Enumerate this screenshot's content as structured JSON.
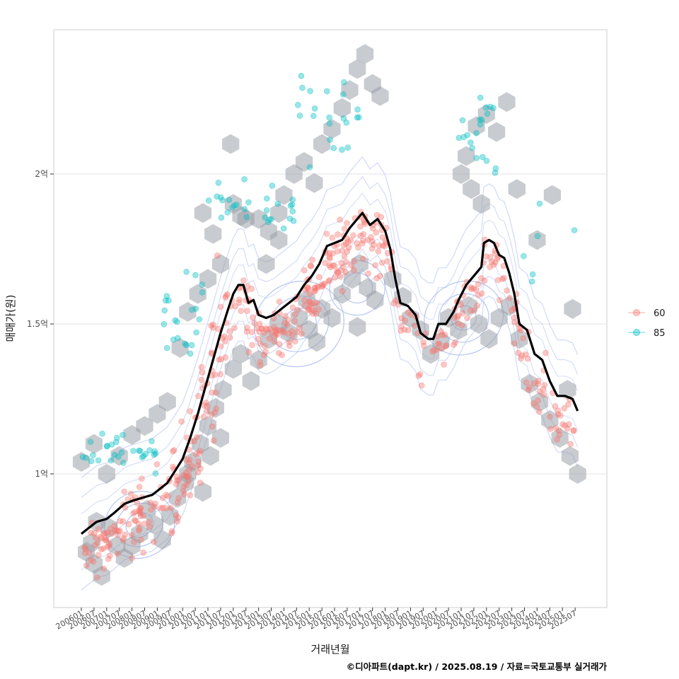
{
  "chart_data": {
    "type": "scatter",
    "xlabel": "거래년월",
    "ylabel": "매매가(원)",
    "caption": "©디아파트(dapt.kr) / 2025.08.19 / 자료=국토교통부 실거래가",
    "x_ticks": [
      "200601",
      "200607",
      "200701",
      "200707",
      "200801",
      "200807",
      "200901",
      "200907",
      "201001",
      "201007",
      "201101",
      "201107",
      "201201",
      "201207",
      "201301",
      "201307",
      "201401",
      "201407",
      "201501",
      "201507",
      "201601",
      "201607",
      "201701",
      "201707",
      "201801",
      "201807",
      "201901",
      "201907",
      "202001",
      "202007",
      "202101",
      "202107",
      "202201",
      "202207",
      "202301",
      "202307",
      "202401",
      "202407",
      "202501",
      "202507"
    ],
    "xlim": [
      2005.5,
      2026.6
    ],
    "y_ticks": [
      {
        "value": 100000000,
        "label": "1억"
      },
      {
        "value": 150000000,
        "label": "1.5억"
      },
      {
        "value": 200000000,
        "label": "2억"
      }
    ],
    "ylim": [
      55000000,
      248000000
    ],
    "grid": true,
    "legend": {
      "position": "right",
      "entries": [
        {
          "name": "60",
          "color": "#F8766D"
        },
        {
          "name": "85",
          "color": "#00BFC4"
        }
      ]
    },
    "trend_line": {
      "color": "#000000",
      "points": [
        [
          2006.0,
          80
        ],
        [
          2006.3,
          82
        ],
        [
          2006.6,
          84
        ],
        [
          2007.0,
          85
        ],
        [
          2007.3,
          87
        ],
        [
          2007.7,
          90
        ],
        [
          2008.0,
          91
        ],
        [
          2008.4,
          92
        ],
        [
          2008.8,
          93
        ],
        [
          2009.1,
          95
        ],
        [
          2009.4,
          97
        ],
        [
          2009.7,
          101
        ],
        [
          2010.0,
          105
        ],
        [
          2010.3,
          112
        ],
        [
          2010.6,
          120
        ],
        [
          2010.9,
          129
        ],
        [
          2011.2,
          138
        ],
        [
          2011.5,
          147
        ],
        [
          2011.8,
          155
        ],
        [
          2012.0,
          160
        ],
        [
          2012.2,
          163
        ],
        [
          2012.4,
          163
        ],
        [
          2012.6,
          157
        ],
        [
          2012.8,
          158
        ],
        [
          2013.0,
          153
        ],
        [
          2013.3,
          152
        ],
        [
          2013.6,
          153
        ],
        [
          2013.9,
          155
        ],
        [
          2014.2,
          157
        ],
        [
          2014.5,
          159
        ],
        [
          2014.8,
          163
        ],
        [
          2015.1,
          166
        ],
        [
          2015.4,
          170
        ],
        [
          2015.7,
          176
        ],
        [
          2016.0,
          177
        ],
        [
          2016.3,
          178
        ],
        [
          2016.6,
          182
        ],
        [
          2016.9,
          185
        ],
        [
          2017.1,
          187
        ],
        [
          2017.4,
          183
        ],
        [
          2017.7,
          185
        ],
        [
          2018.0,
          181
        ],
        [
          2018.2,
          175
        ],
        [
          2018.4,
          165
        ],
        [
          2018.6,
          157
        ],
        [
          2018.9,
          156
        ],
        [
          2019.2,
          153
        ],
        [
          2019.4,
          147
        ],
        [
          2019.7,
          145
        ],
        [
          2019.9,
          145
        ],
        [
          2020.1,
          150
        ],
        [
          2020.4,
          150
        ],
        [
          2020.7,
          154
        ],
        [
          2020.9,
          158
        ],
        [
          2021.2,
          163
        ],
        [
          2021.5,
          166
        ],
        [
          2021.8,
          169
        ],
        [
          2021.9,
          177
        ],
        [
          2022.1,
          178
        ],
        [
          2022.3,
          177
        ],
        [
          2022.5,
          173
        ],
        [
          2022.7,
          172
        ],
        [
          2022.9,
          167
        ],
        [
          2023.1,
          160
        ],
        [
          2023.3,
          150
        ],
        [
          2023.6,
          148
        ],
        [
          2023.9,
          140
        ],
        [
          2024.2,
          138
        ],
        [
          2024.5,
          131
        ],
        [
          2024.8,
          126
        ],
        [
          2025.1,
          126
        ],
        [
          2025.4,
          125
        ],
        [
          2025.6,
          121
        ]
      ]
    },
    "point_clusters": [
      {
        "series": "60",
        "x_range": [
          2006.0,
          2009.5
        ],
        "y_center": 80,
        "y_spread": 9,
        "count": 95
      },
      {
        "series": "60",
        "x_range": [
          2009.5,
          2011.5
        ],
        "y_center": 110,
        "y_spread": 18,
        "count": 80
      },
      {
        "series": "60",
        "x_range": [
          2011.5,
          2013.5
        ],
        "y_center": 143,
        "y_spread": 10,
        "count": 55
      },
      {
        "series": "60",
        "x_range": [
          2013.5,
          2016.0
        ],
        "y_center": 150,
        "y_spread": 8,
        "count": 90
      },
      {
        "series": "60",
        "x_range": [
          2016.0,
          2018.0
        ],
        "y_center": 163,
        "y_spread": 10,
        "count": 70
      },
      {
        "series": "60",
        "x_range": [
          2018.0,
          2020.0
        ],
        "y_center": 150,
        "y_spread": 8,
        "count": 30
      },
      {
        "series": "60",
        "x_range": [
          2020.0,
          2023.5
        ],
        "y_center": 152,
        "y_spread": 8,
        "count": 75
      },
      {
        "series": "60",
        "x_range": [
          2023.5,
          2025.6
        ],
        "y_center": 122,
        "y_spread": 10,
        "count": 40
      },
      {
        "series": "85",
        "x_range": [
          2006.0,
          2009.0
        ],
        "y_center": 108,
        "y_spread": 6,
        "count": 30
      },
      {
        "series": "85",
        "x_range": [
          2009.0,
          2011.0
        ],
        "y_center": 152,
        "y_spread": 16,
        "count": 22
      },
      {
        "series": "85",
        "x_range": [
          2011.0,
          2014.5
        ],
        "y_center": 188,
        "y_spread": 8,
        "count": 30
      },
      {
        "series": "85",
        "x_range": [
          2014.5,
          2017.0
        ],
        "y_center": 218,
        "y_spread": 14,
        "count": 22
      },
      {
        "series": "85",
        "x_range": [
          2020.8,
          2022.5
        ],
        "y_center": 212,
        "y_spread": 14,
        "count": 20
      },
      {
        "series": "85",
        "x_range": [
          2023.0,
          2025.5
        ],
        "y_center": 185,
        "y_spread": 25,
        "count": 6
      }
    ],
    "hex_bins": [
      [
        2006.2,
        74
      ],
      [
        2006.5,
        70
      ],
      [
        2006.8,
        66
      ],
      [
        2006.6,
        84
      ],
      [
        2006.4,
        77
      ],
      [
        2007.1,
        82
      ],
      [
        2007.4,
        76
      ],
      [
        2007.7,
        72
      ],
      [
        2008.0,
        76
      ],
      [
        2008.3,
        80
      ],
      [
        2008.6,
        88
      ],
      [
        2008.9,
        83
      ],
      [
        2009.2,
        78
      ],
      [
        2009.5,
        86
      ],
      [
        2009.8,
        92
      ],
      [
        2010.1,
        97
      ],
      [
        2010.4,
        104
      ],
      [
        2010.7,
        110
      ],
      [
        2011.0,
        116
      ],
      [
        2011.3,
        122
      ],
      [
        2011.6,
        128
      ],
      [
        2010.2,
        100
      ],
      [
        2010.8,
        94
      ],
      [
        2011.1,
        106
      ],
      [
        2011.5,
        112
      ],
      [
        2012.0,
        135
      ],
      [
        2012.3,
        140
      ],
      [
        2012.7,
        131
      ],
      [
        2013.0,
        138
      ],
      [
        2013.4,
        145
      ],
      [
        2013.8,
        150
      ],
      [
        2014.2,
        147
      ],
      [
        2014.6,
        152
      ],
      [
        2015.0,
        148
      ],
      [
        2015.3,
        144
      ],
      [
        2014.9,
        158
      ],
      [
        2015.5,
        155
      ],
      [
        2015.9,
        152
      ],
      [
        2016.3,
        160
      ],
      [
        2016.7,
        165
      ],
      [
        2017.0,
        170
      ],
      [
        2017.3,
        162
      ],
      [
        2017.6,
        158
      ],
      [
        2016.9,
        149
      ],
      [
        2018.3,
        165
      ],
      [
        2018.7,
        159
      ],
      [
        2019.0,
        152
      ],
      [
        2019.4,
        148
      ],
      [
        2019.8,
        140
      ],
      [
        2020.2,
        144
      ],
      [
        2020.5,
        152
      ],
      [
        2020.9,
        148
      ],
      [
        2021.3,
        156
      ],
      [
        2021.7,
        150
      ],
      [
        2022.1,
        145
      ],
      [
        2022.5,
        152
      ],
      [
        2022.9,
        156
      ],
      [
        2023.3,
        145
      ],
      [
        2023.7,
        130
      ],
      [
        2024.1,
        124
      ],
      [
        2024.5,
        118
      ],
      [
        2024.9,
        112
      ],
      [
        2025.3,
        106
      ],
      [
        2025.6,
        100
      ],
      [
        2025.2,
        128
      ],
      [
        2006.0,
        104
      ],
      [
        2006.5,
        110
      ],
      [
        2007.0,
        100
      ],
      [
        2007.5,
        106
      ],
      [
        2008.0,
        113
      ],
      [
        2008.5,
        116
      ],
      [
        2009.0,
        120
      ],
      [
        2009.4,
        124
      ],
      [
        2009.9,
        142
      ],
      [
        2010.2,
        154
      ],
      [
        2010.6,
        160
      ],
      [
        2011.0,
        165
      ],
      [
        2011.5,
        170
      ],
      [
        2010.8,
        187
      ],
      [
        2011.2,
        180
      ],
      [
        2012.0,
        190
      ],
      [
        2012.5,
        185
      ],
      [
        2013.0,
        185
      ],
      [
        2013.4,
        181
      ],
      [
        2013.8,
        187
      ],
      [
        2014.0,
        193
      ],
      [
        2014.4,
        200
      ],
      [
        2014.8,
        204
      ],
      [
        2015.2,
        197
      ],
      [
        2015.5,
        210
      ],
      [
        2015.9,
        215
      ],
      [
        2016.3,
        222
      ],
      [
        2016.6,
        228
      ],
      [
        2016.9,
        235
      ],
      [
        2017.2,
        240
      ],
      [
        2017.5,
        230
      ],
      [
        2017.8,
        226
      ],
      [
        2021.0,
        200
      ],
      [
        2021.4,
        195
      ],
      [
        2021.8,
        190
      ],
      [
        2021.2,
        206
      ],
      [
        2021.6,
        216
      ],
      [
        2022.0,
        220
      ],
      [
        2022.4,
        214
      ],
      [
        2022.8,
        224
      ],
      [
        2023.2,
        195
      ],
      [
        2024.0,
        178
      ],
      [
        2024.6,
        193
      ],
      [
        2025.4,
        155
      ],
      [
        2011.9,
        210
      ],
      [
        2012.3,
        186
      ],
      [
        2013.3,
        170
      ],
      [
        2013.8,
        178
      ]
    ],
    "density_contours": [
      {
        "cx": 2008.3,
        "cy": 83,
        "levels": [
          [
            0.55,
            4,
            0.2
          ],
          [
            0.95,
            7,
            0.1
          ],
          [
            1.4,
            11,
            0.05
          ]
        ]
      },
      {
        "cx": 2014.6,
        "cy": 150,
        "levels": [
          [
            0.7,
            5,
            0.6
          ],
          [
            1.2,
            9,
            0.6
          ],
          [
            1.8,
            14,
            0.6
          ]
        ]
      },
      {
        "cx": 2016.9,
        "cy": 162,
        "levels": [
          [
            0.6,
            5,
            0.3
          ],
          [
            1.1,
            9,
            0.3
          ]
        ]
      },
      {
        "cx": 2021.1,
        "cy": 152,
        "levels": [
          [
            0.5,
            4,
            0.4
          ],
          [
            1.0,
            8,
            0.4
          ],
          [
            1.6,
            12,
            0.4
          ]
        ]
      }
    ]
  }
}
